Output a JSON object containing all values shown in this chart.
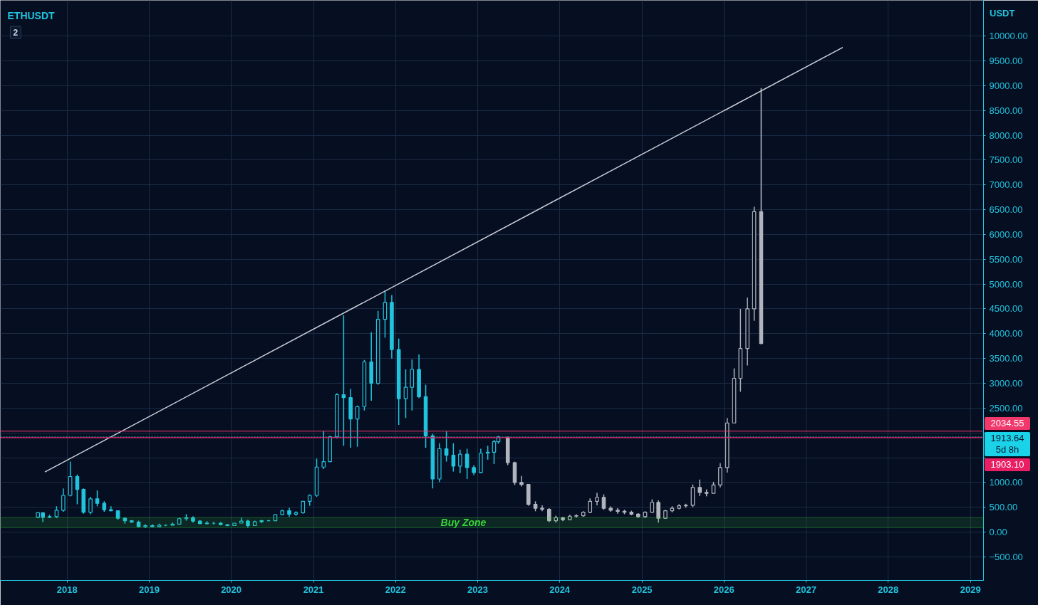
{
  "chart_data": {
    "type": "candlestick",
    "title": "ETHUSDT",
    "ylabel": "USDT",
    "xlim": [
      "2017-03-10",
      "2029-02-28"
    ],
    "ylim": [
      -975,
      10720
    ],
    "xticks": [
      "2018",
      "2019",
      "2020",
      "2021",
      "2022",
      "2023",
      "2024",
      "2025",
      "2026",
      "2027",
      "2028",
      "2029"
    ],
    "yticks": [
      {
        "value": -500,
        "label": "−500.00"
      },
      {
        "value": 0,
        "label": "0.00"
      },
      {
        "value": 500,
        "label": "500.00"
      },
      {
        "value": 1000,
        "label": "1000.00"
      },
      {
        "value": 1500,
        "label": null
      },
      {
        "value": 2000,
        "label": null
      },
      {
        "value": 2500,
        "label": "2500.00"
      },
      {
        "value": 3000,
        "label": "3000.00"
      },
      {
        "value": 3500,
        "label": "3500.00"
      },
      {
        "value": 4000,
        "label": "4000.00"
      },
      {
        "value": 4500,
        "label": "4500.00"
      },
      {
        "value": 5000,
        "label": "5000.00"
      },
      {
        "value": 5500,
        "label": "5500.00"
      },
      {
        "value": 6000,
        "label": "6000.00"
      },
      {
        "value": 6500,
        "label": "6500.00"
      },
      {
        "value": 7000,
        "label": "7000.00"
      },
      {
        "value": 7500,
        "label": "7500.00"
      },
      {
        "value": 8000,
        "label": "8000.00"
      },
      {
        "value": 8500,
        "label": "8500.00"
      },
      {
        "value": 9000,
        "label": "9000.00"
      },
      {
        "value": 9500,
        "label": "9500.00"
      },
      {
        "value": 10000,
        "label": "10000.00"
      }
    ],
    "grid": true,
    "series": [
      {
        "color": "#22c3dd",
        "x": [
          "2017-08-24",
          "2017-09-15",
          "2017-10-15",
          "2017-11-15",
          "2017-12-15",
          "2018-01-15",
          "2018-02-15",
          "2018-03-15",
          "2018-04-15",
          "2018-05-15",
          "2018-06-15",
          "2018-07-15",
          "2018-08-15",
          "2018-09-15",
          "2018-10-15",
          "2018-11-15",
          "2018-12-15",
          "2019-01-15",
          "2019-02-15",
          "2019-03-15",
          "2019-04-15",
          "2019-05-15",
          "2019-06-15",
          "2019-07-15",
          "2019-08-15",
          "2019-09-15",
          "2019-10-15",
          "2019-11-15",
          "2019-12-15",
          "2020-01-15",
          "2020-02-15",
          "2020-03-15",
          "2020-04-15",
          "2020-05-15",
          "2020-06-15",
          "2020-07-15",
          "2020-08-15",
          "2020-09-15",
          "2020-10-15",
          "2020-11-15",
          "2020-12-15",
          "2021-01-15",
          "2021-02-15",
          "2021-03-15",
          "2021-04-15",
          "2021-05-15",
          "2021-06-15",
          "2021-07-15",
          "2021-08-15",
          "2021-09-15",
          "2021-10-15",
          "2021-11-15",
          "2021-12-15",
          "2022-01-15",
          "2022-02-15",
          "2022-03-15",
          "2022-04-15",
          "2022-05-15",
          "2022-06-15",
          "2022-07-15",
          "2022-08-15",
          "2022-09-15",
          "2022-10-15",
          "2022-11-15",
          "2022-12-15",
          "2023-01-15",
          "2023-02-15",
          "2023-03-15",
          "2023-04-03"
        ],
        "ohlc": [
          [
            300,
            390,
            280,
            390
          ],
          [
            390,
            400,
            200,
            300
          ],
          [
            300,
            350,
            280,
            310
          ],
          [
            310,
            520,
            280,
            440
          ],
          [
            440,
            880,
            410,
            740
          ],
          [
            740,
            1420,
            720,
            1120
          ],
          [
            1120,
            1160,
            560,
            860
          ],
          [
            860,
            880,
            370,
            400
          ],
          [
            400,
            710,
            360,
            670
          ],
          [
            670,
            840,
            520,
            580
          ],
          [
            580,
            620,
            410,
            450
          ],
          [
            450,
            520,
            420,
            430
          ],
          [
            430,
            440,
            250,
            280
          ],
          [
            280,
            300,
            170,
            230
          ],
          [
            230,
            240,
            190,
            200
          ],
          [
            200,
            230,
            100,
            110
          ],
          [
            110,
            160,
            80,
            130
          ],
          [
            130,
            160,
            100,
            110
          ],
          [
            110,
            170,
            100,
            140
          ],
          [
            140,
            150,
            120,
            140
          ],
          [
            140,
            190,
            140,
            160
          ],
          [
            160,
            290,
            160,
            270
          ],
          [
            270,
            360,
            230,
            290
          ],
          [
            290,
            320,
            190,
            220
          ],
          [
            220,
            240,
            160,
            170
          ],
          [
            170,
            220,
            150,
            180
          ],
          [
            180,
            200,
            150,
            180
          ],
          [
            180,
            200,
            140,
            150
          ],
          [
            150,
            150,
            120,
            130
          ],
          [
            130,
            180,
            130,
            180
          ],
          [
            180,
            290,
            180,
            220
          ],
          [
            220,
            250,
            90,
            130
          ],
          [
            130,
            230,
            130,
            210
          ],
          [
            210,
            250,
            180,
            230
          ],
          [
            230,
            250,
            220,
            230
          ],
          [
            230,
            350,
            220,
            350
          ],
          [
            350,
            450,
            340,
            430
          ],
          [
            430,
            490,
            310,
            360
          ],
          [
            360,
            420,
            330,
            390
          ],
          [
            390,
            620,
            370,
            620
          ],
          [
            620,
            760,
            530,
            740
          ],
          [
            740,
            1480,
            710,
            1310
          ],
          [
            1310,
            2040,
            1270,
            1420
          ],
          [
            1420,
            1940,
            1410,
            1920
          ],
          [
            1920,
            2800,
            1890,
            2770
          ],
          [
            2770,
            4370,
            1740,
            2710
          ],
          [
            2710,
            2890,
            1700,
            2280
          ],
          [
            2280,
            2550,
            1720,
            2530
          ],
          [
            2530,
            3470,
            2450,
            3430
          ],
          [
            3430,
            4030,
            2650,
            3000
          ],
          [
            3000,
            4460,
            2970,
            4290
          ],
          [
            4290,
            4870,
            3920,
            4630
          ],
          [
            4630,
            4780,
            3500,
            3680
          ],
          [
            3680,
            3900,
            2160,
            2690
          ],
          [
            2690,
            3280,
            2300,
            2920
          ],
          [
            2920,
            3480,
            2450,
            3280
          ],
          [
            3280,
            3580,
            2700,
            2730
          ],
          [
            2730,
            2970,
            1700,
            1940
          ],
          [
            1940,
            1980,
            880,
            1070
          ],
          [
            1070,
            1790,
            1010,
            1680
          ],
          [
            1680,
            2030,
            1420,
            1550
          ],
          [
            1550,
            1790,
            1220,
            1330
          ],
          [
            1330,
            1660,
            1190,
            1570
          ],
          [
            1570,
            1680,
            1070,
            1300
          ],
          [
            1300,
            1350,
            1150,
            1200
          ],
          [
            1200,
            1680,
            1190,
            1590
          ],
          [
            1590,
            1740,
            1460,
            1610
          ],
          [
            1610,
            1860,
            1370,
            1820
          ],
          [
            1820,
            1940,
            1780,
            1913.64
          ]
        ]
      },
      {
        "color": "#b2b5be",
        "x": [
          "2023-05-15",
          "2023-06-15",
          "2023-07-15",
          "2023-08-15",
          "2023-09-15",
          "2023-10-15",
          "2023-11-15",
          "2023-12-15",
          "2024-01-15",
          "2024-02-15",
          "2024-03-15",
          "2024-04-15",
          "2024-05-15",
          "2024-06-15",
          "2024-07-15",
          "2024-08-15",
          "2024-09-15",
          "2024-10-15",
          "2024-11-15",
          "2024-12-15",
          "2025-01-15",
          "2025-02-15",
          "2025-03-15",
          "2025-04-15",
          "2025-05-15",
          "2025-06-15",
          "2025-07-15",
          "2025-08-15",
          "2025-09-15",
          "2025-10-15",
          "2025-11-15",
          "2025-12-15",
          "2026-01-15",
          "2026-02-15",
          "2026-03-15",
          "2026-04-15",
          "2026-05-15",
          "2026-06-15"
        ],
        "ohlc": [
          [
            1910,
            1920,
            1350,
            1400
          ],
          [
            1400,
            1420,
            950,
            1000
          ],
          [
            1000,
            1130,
            920,
            960
          ],
          [
            960,
            970,
            530,
            560
          ],
          [
            560,
            620,
            420,
            480
          ],
          [
            480,
            540,
            420,
            460
          ],
          [
            460,
            480,
            200,
            230
          ],
          [
            230,
            330,
            190,
            290
          ],
          [
            290,
            310,
            220,
            250
          ],
          [
            250,
            350,
            240,
            320
          ],
          [
            320,
            360,
            290,
            330
          ],
          [
            330,
            420,
            310,
            400
          ],
          [
            400,
            680,
            380,
            620
          ],
          [
            620,
            790,
            540,
            700
          ],
          [
            700,
            760,
            450,
            480
          ],
          [
            480,
            520,
            410,
            440
          ],
          [
            440,
            480,
            370,
            420
          ],
          [
            420,
            450,
            360,
            400
          ],
          [
            400,
            430,
            340,
            360
          ],
          [
            360,
            380,
            290,
            310
          ],
          [
            310,
            420,
            280,
            400
          ],
          [
            400,
            660,
            390,
            600
          ],
          [
            600,
            640,
            190,
            280
          ],
          [
            280,
            450,
            270,
            430
          ],
          [
            430,
            520,
            400,
            480
          ],
          [
            480,
            560,
            460,
            530
          ],
          [
            530,
            570,
            490,
            540
          ],
          [
            540,
            960,
            500,
            900
          ],
          [
            900,
            1060,
            730,
            800
          ],
          [
            800,
            860,
            720,
            780
          ],
          [
            780,
            1010,
            780,
            950
          ],
          [
            950,
            1390,
            900,
            1300
          ],
          [
            1300,
            2300,
            1200,
            2200
          ],
          [
            2200,
            3300,
            2200,
            3100
          ],
          [
            3100,
            4500,
            2830,
            3700
          ],
          [
            3700,
            4730,
            3360,
            4500
          ],
          [
            4500,
            6560,
            4260,
            6460
          ],
          [
            6460,
            8950,
            3790,
            3800
          ]
        ]
      },
      {
        "type": "line",
        "color": "#d1d4dc",
        "x": [
          "2017-09-24",
          "2027-06-13"
        ],
        "values": [
          1210,
          9770
        ]
      }
    ],
    "ref_lines": [
      {
        "axis": "y",
        "value": 2034.55,
        "label": "2034.55",
        "color": "#f0386b"
      },
      {
        "axis": "y",
        "value": 1913.64,
        "label": "1913.64",
        "color": "#1ad3e8",
        "line_style": "dotted"
      },
      {
        "axis": "y",
        "value": 1903.1,
        "label": "1903.10",
        "color": "#e91e63"
      }
    ],
    "bands": [
      {
        "axis": "y",
        "from": 90,
        "to": 290,
        "label": "Buy Zone",
        "color": "#3ad43a"
      }
    ],
    "annotations": [
      "2",
      "5d 8h"
    ]
  }
}
